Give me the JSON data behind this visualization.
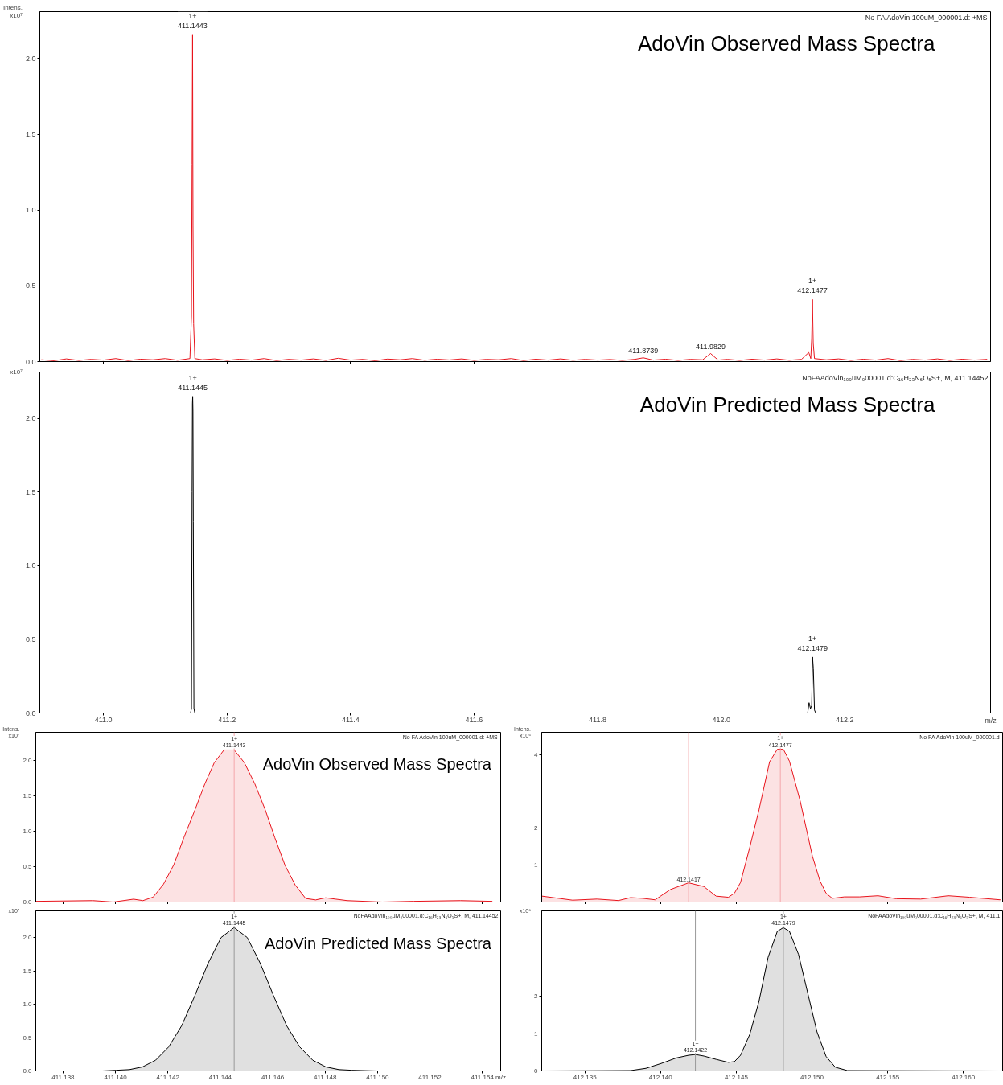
{
  "chart_data": [
    {
      "type": "line",
      "title": "AdoVin Observed Mass Spectra",
      "ylabel": "Intens.\nx10⁷",
      "tick_labels": "y",
      "xlim": [
        410.897,
        412.436
      ],
      "ylim": [
        0,
        2.31
      ],
      "xticks": [
        411.0,
        411.2,
        411.4,
        411.6,
        411.8,
        412.0,
        412.2
      ],
      "yticks": [
        {
          "value": 0,
          "label": "0.0"
        },
        {
          "value": 0.5,
          "label": "0.5"
        },
        {
          "value": 1.0,
          "label": "1.0"
        },
        {
          "value": 1.5,
          "label": "1.5"
        },
        {
          "value": 2.0,
          "label": "2.0"
        }
      ],
      "x": [
        410.9,
        410.92,
        410.94,
        410.96,
        410.98,
        411.0,
        411.02,
        411.04,
        411.06,
        411.08,
        411.1,
        411.12,
        411.14,
        411.1425,
        411.1435,
        411.1443,
        411.145,
        411.146,
        411.148,
        411.16,
        411.18,
        411.2,
        411.22,
        411.24,
        411.26,
        411.28,
        411.3,
        411.32,
        411.34,
        411.36,
        411.38,
        411.4,
        411.42,
        411.44,
        411.46,
        411.48,
        411.5,
        411.52,
        411.54,
        411.56,
        411.58,
        411.6,
        411.62,
        411.64,
        411.66,
        411.68,
        411.7,
        411.72,
        411.74,
        411.76,
        411.78,
        411.8,
        411.82,
        411.84,
        411.86,
        411.8739,
        411.89,
        411.91,
        411.93,
        411.95,
        411.97,
        411.9829,
        411.995,
        412.01,
        412.03,
        412.05,
        412.07,
        412.09,
        412.11,
        412.13,
        412.1418,
        412.145,
        412.1465,
        412.1477,
        412.149,
        412.151,
        412.17,
        412.19,
        412.21,
        412.23,
        412.25,
        412.27,
        412.29,
        412.31,
        412.33,
        412.35,
        412.37,
        412.39,
        412.41,
        412.43
      ],
      "series": [
        {
          "color": "#e8141c",
          "values": [
            0.012,
            0.006,
            0.018,
            0.008,
            0.015,
            0.01,
            0.02,
            0.007,
            0.016,
            0.012,
            0.02,
            0.009,
            0.02,
            0.3,
            1.3,
            2.16,
            0.9,
            0.25,
            0.02,
            0.012,
            0.018,
            0.008,
            0.016,
            0.01,
            0.02,
            0.007,
            0.015,
            0.01,
            0.018,
            0.008,
            0.022,
            0.01,
            0.015,
            0.006,
            0.017,
            0.012,
            0.02,
            0.009,
            0.016,
            0.011,
            0.018,
            0.008,
            0.015,
            0.012,
            0.02,
            0.007,
            0.016,
            0.01,
            0.018,
            0.009,
            0.015,
            0.01,
            0.014,
            0.008,
            0.015,
            0.025,
            0.01,
            0.016,
            0.008,
            0.015,
            0.012,
            0.053,
            0.01,
            0.015,
            0.008,
            0.016,
            0.01,
            0.018,
            0.009,
            0.015,
            0.06,
            0.02,
            0.15,
            0.41,
            0.12,
            0.02,
            0.012,
            0.018,
            0.008,
            0.016,
            0.01,
            0.02,
            0.007,
            0.015,
            0.01,
            0.018,
            0.008,
            0.016,
            0.01,
            0.015
          ]
        }
      ],
      "annotations": [
        "No FA AdoVin 100uM_000001.d: +MS",
        {
          "text": "1+\n411.1443",
          "x": 411.1443,
          "y": 2.16
        },
        {
          "text": "411.8739",
          "x": 411.8739,
          "y": 0.025
        },
        {
          "text": "411.9829",
          "x": 411.9829,
          "y": 0.053
        },
        {
          "text": "1+\n412.1477",
          "x": 412.1477,
          "y": 0.41
        }
      ]
    },
    {
      "type": "line",
      "title": "AdoVin Predicted Mass Spectra",
      "ylabel": "x10⁷",
      "xlabel": "m/z",
      "xlim": [
        410.897,
        412.436
      ],
      "ylim": [
        0,
        2.315
      ],
      "xticks": [
        {
          "value": 411.0,
          "label": "411.0"
        },
        {
          "value": 411.2,
          "label": "411.2"
        },
        {
          "value": 411.4,
          "label": "411.4"
        },
        {
          "value": 411.6,
          "label": "411.6"
        },
        {
          "value": 411.8,
          "label": "411.8"
        },
        {
          "value": 412.0,
          "label": "412.0"
        },
        {
          "value": 412.2,
          "label": "412.2"
        }
      ],
      "yticks": [
        {
          "value": 0,
          "label": "0.0"
        },
        {
          "value": 0.5,
          "label": "0.5"
        },
        {
          "value": 1.0,
          "label": "1.0"
        },
        {
          "value": 1.5,
          "label": "1.5"
        },
        {
          "value": 2.0,
          "label": "2.0"
        }
      ],
      "x": [
        410.9,
        411.141,
        411.1425,
        411.1435,
        411.1441,
        411.1445,
        411.1449,
        411.1455,
        411.1465,
        411.148,
        412.14,
        412.1422,
        412.1445,
        412.1465,
        412.1479,
        412.1492,
        412.151,
        412.153,
        412.436
      ],
      "series": [
        {
          "color": "#000000",
          "values": [
            0,
            0,
            0.03,
            1.5,
            2.1,
            2.15,
            2.05,
            1.3,
            0.03,
            0,
            0,
            0.07,
            0.03,
            0.05,
            0.38,
            0.3,
            0.02,
            0,
            0
          ]
        }
      ],
      "annotations": [
        "NoFAAdoVin₁₀₀uM₀00001.d:C₁₆H₂₃N₆O₅S+, M, 411.14452",
        {
          "text": "1+\n411.1445",
          "x": 411.1445,
          "y": 2.15
        },
        {
          "text": "1+\n412.1479",
          "x": 412.1479,
          "y": 0.38
        }
      ]
    },
    {
      "type": "area",
      "title": "AdoVin Observed Mass Spectra",
      "ylabel": "Intens.\nx10⁷",
      "tick_labels": "y",
      "xlim": [
        411.13696,
        411.1547
      ],
      "ylim": [
        0,
        2.4
      ],
      "xticks": [
        411.138,
        411.14,
        411.142,
        411.144,
        411.146,
        411.148,
        411.15,
        411.152,
        411.154
      ],
      "yticks": [
        {
          "value": 0,
          "label": "0.0"
        },
        {
          "value": 0.5,
          "label": "0.5"
        },
        {
          "value": 1.0,
          "label": "1.0"
        },
        {
          "value": 1.5,
          "label": "1.5"
        },
        {
          "value": 2.0,
          "label": "2.0"
        }
      ],
      "x": [
        411.13698,
        411.13914,
        411.13992,
        411.14069,
        411.14105,
        411.14144,
        411.14183,
        411.14223,
        411.14261,
        411.14303,
        411.14341,
        411.14377,
        411.14414,
        411.14453,
        411.14492,
        411.14532,
        411.14572,
        411.14608,
        411.14647,
        411.14686,
        411.14726,
        411.14764,
        411.14802,
        411.14842,
        411.14884,
        411.15018,
        411.15138,
        411.15317,
        411.15437
      ],
      "series": [
        {
          "color": "#e8141c",
          "values": [
            0.01,
            0.02,
            0.0,
            0.04,
            0.02,
            0.07,
            0.25,
            0.53,
            0.91,
            1.3,
            1.67,
            1.97,
            2.15,
            2.15,
            1.97,
            1.67,
            1.3,
            0.91,
            0.52,
            0.24,
            0.05,
            0.03,
            0.06,
            0.04,
            0.02,
            0.0,
            0.01,
            0.02,
            0.01
          ]
        }
      ],
      "ref_lines": [
        {
          "axis": "x",
          "value": 411.14453,
          "color": "#f4a6aa"
        }
      ],
      "annotations": [
        "No FA AdoVin 100uM_000001.d: +MS",
        {
          "text": "1+\n411.1443",
          "x": 411.14453,
          "y": 2.15
        }
      ]
    },
    {
      "type": "area",
      "ylabel": "Intens.\nx10⁶",
      "tick_labels": "y",
      "xlim": [
        412.13215,
        412.16259
      ],
      "ylim": [
        0,
        4.6
      ],
      "xticks": [
        412.135,
        412.14,
        412.145,
        412.15,
        412.155,
        412.16
      ],
      "yticks": [
        {
          "value": 0,
          "label": null
        },
        1,
        2,
        {
          "value": 3,
          "label": null
        },
        4
      ],
      "x": [
        412.13217,
        412.13419,
        412.1358,
        412.13722,
        412.13802,
        412.13883,
        412.13964,
        412.14065,
        412.14185,
        412.14286,
        412.14367,
        412.14448,
        412.14488,
        412.14528,
        412.14589,
        412.1465,
        412.1472,
        412.14771,
        412.14811,
        412.14851,
        412.14922,
        412.15003,
        412.15053,
        412.15093,
        412.15134,
        412.15214,
        412.15315,
        412.15436,
        412.15557,
        412.15718,
        412.159,
        412.16041,
        412.16243
      ],
      "series": [
        {
          "color": "#e8141c",
          "values": [
            0.16,
            0.05,
            0.08,
            0.04,
            0.12,
            0.1,
            0.06,
            0.34,
            0.52,
            0.42,
            0.16,
            0.13,
            0.24,
            0.53,
            1.48,
            2.5,
            3.8,
            4.14,
            4.14,
            3.82,
            2.74,
            1.24,
            0.57,
            0.24,
            0.1,
            0.14,
            0.14,
            0.17,
            0.09,
            0.08,
            0.17,
            0.13,
            0.06
          ]
        }
      ],
      "ref_lines": [
        {
          "axis": "x",
          "value": 412.14185,
          "color": "#f4a6aa"
        },
        {
          "axis": "x",
          "value": 412.14791,
          "color": "#f4a6aa"
        }
      ],
      "annotations": [
        "No FA AdoVin 100uM_000001.d",
        {
          "text": "412.1417",
          "x": 412.14185,
          "y": 0.52
        },
        {
          "text": "1+\n412.1477",
          "x": 412.14791,
          "y": 4.14
        }
      ]
    },
    {
      "type": "area",
      "title": "AdoVin Predicted Mass Spectra",
      "ylabel": "x10⁷",
      "xlabel": "m/z",
      "xlim": [
        411.13696,
        411.1547
      ],
      "ylim": [
        0,
        2.4
      ],
      "xticks": [
        {
          "value": 411.138,
          "label": "411.138"
        },
        {
          "value": 411.14,
          "label": "411.140"
        },
        {
          "value": 411.142,
          "label": "411.142"
        },
        {
          "value": 411.144,
          "label": "411.144"
        },
        {
          "value": 411.146,
          "label": "411.146"
        },
        {
          "value": 411.148,
          "label": "411.148"
        },
        {
          "value": 411.15,
          "label": "411.150"
        },
        {
          "value": 411.152,
          "label": "411.152"
        },
        {
          "value": 411.154,
          "label": "411.154"
        }
      ],
      "yticks": [
        {
          "value": 0,
          "label": "0.0"
        },
        {
          "value": 0.5,
          "label": "0.5"
        },
        {
          "value": 1.0,
          "label": "1.0"
        },
        {
          "value": 1.5,
          "label": "1.5"
        },
        {
          "value": 2.0,
          "label": "2.0"
        }
      ],
      "x": [
        411.137,
        411.1395,
        411.14003,
        411.14053,
        411.14103,
        411.14153,
        411.14203,
        411.14253,
        411.14303,
        411.14353,
        411.14403,
        411.14453,
        411.14503,
        411.14553,
        411.14603,
        411.14653,
        411.14703,
        411.14753,
        411.14803,
        411.14853,
        411.14903,
        411.15,
        411.1545
      ],
      "series": [
        {
          "color": "#000000",
          "values": [
            0,
            0,
            0.01,
            0.02,
            0.06,
            0.16,
            0.36,
            0.68,
            1.13,
            1.61,
            2.0,
            2.15,
            2.0,
            1.61,
            1.13,
            0.68,
            0.36,
            0.16,
            0.06,
            0.02,
            0.01,
            0,
            0
          ]
        }
      ],
      "ref_lines": [
        {
          "axis": "x",
          "value": 411.14453,
          "color": "#999999"
        }
      ],
      "annotations": [
        "NoFAAdoVin₁₀₀uM₀00001.d:C₁₆H₂₃N₆O₅S+, M, 411.14452",
        {
          "text": "1+\n411.1445",
          "x": 411.14453,
          "y": 2.15
        }
      ]
    },
    {
      "type": "area",
      "ylabel": "x10⁶",
      "xlim": [
        412.13215,
        412.16259
      ],
      "ylim": [
        0,
        4.3
      ],
      "xticks": [
        {
          "value": 412.135,
          "label": "412.135"
        },
        {
          "value": 412.14,
          "label": "412.140"
        },
        {
          "value": 412.145,
          "label": "412.145"
        },
        {
          "value": 412.15,
          "label": "412.150"
        },
        {
          "value": 412.155,
          "label": "412.155"
        },
        {
          "value": 412.16,
          "label": "412.160"
        }
      ],
      "yticks": [
        0,
        1,
        2
      ],
      "x": [
        412.13217,
        412.13802,
        412.13903,
        412.14004,
        412.14105,
        412.14185,
        412.1423,
        412.14286,
        412.14367,
        412.14448,
        412.14488,
        412.14528,
        412.14589,
        412.1465,
        412.1471,
        412.14771,
        412.14811,
        412.14851,
        412.14911,
        412.14972,
        412.15033,
        412.15093,
        412.15154,
        412.15234,
        412.16243
      ],
      "series": [
        {
          "color": "#000000",
          "values": [
            0,
            0.01,
            0.07,
            0.2,
            0.35,
            0.42,
            0.44,
            0.4,
            0.31,
            0.23,
            0.25,
            0.42,
            0.98,
            1.87,
            3.05,
            3.75,
            3.85,
            3.75,
            3.13,
            2.09,
            1.05,
            0.39,
            0.1,
            0.01,
            0
          ]
        }
      ],
      "ref_lines": [
        {
          "axis": "x",
          "value": 412.1423,
          "color": "#999999"
        },
        {
          "axis": "x",
          "value": 412.14811,
          "color": "#999999"
        }
      ],
      "annotations": [
        "NoFAAdoVin₁₀₀uM₀00001.d:C₁₆H₂₃N₆O₅S+, M, 411.1",
        {
          "text": "1+\n412.1422",
          "x": 412.1423,
          "y": 0.44
        },
        {
          "text": "1+\n412.1479",
          "x": 412.14811,
          "y": 3.85
        }
      ]
    }
  ]
}
